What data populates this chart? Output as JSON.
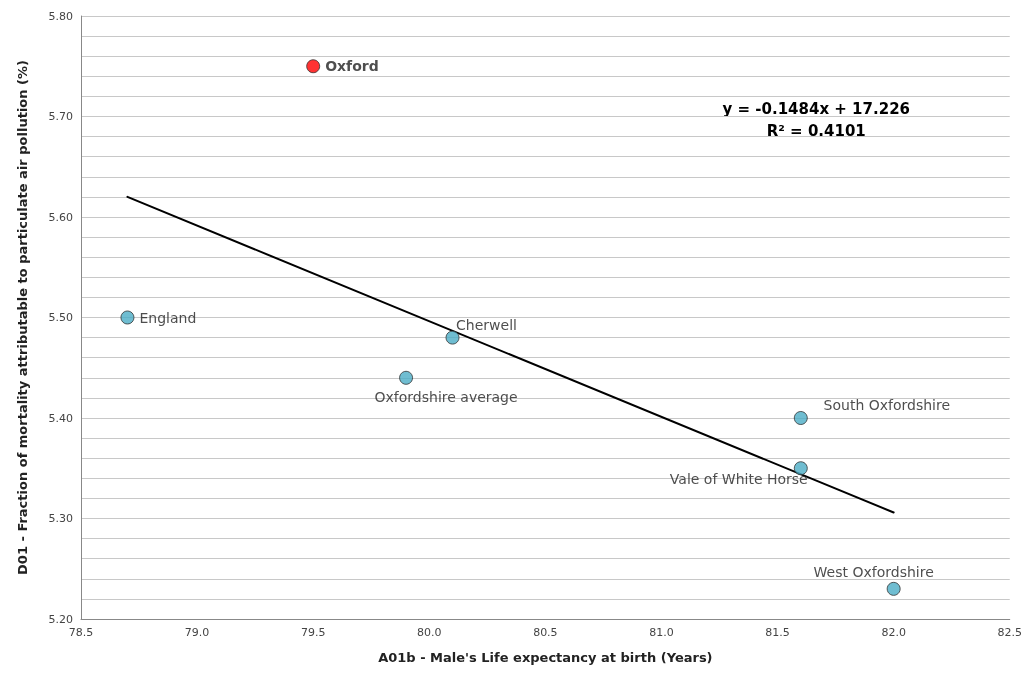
{
  "chart_data": {
    "type": "scatter",
    "xlabel": "A01b - Male's Life expectancy at birth (Years)",
    "ylabel": "D01 - Fraction of mortality attributable to particulate air pollution (%)",
    "xlim": [
      78.5,
      82.5
    ],
    "xticks": [
      {
        "value": 78.5,
        "label": "78.5"
      },
      {
        "value": 79,
        "label": "79.0"
      },
      {
        "value": 79.5,
        "label": "79.5"
      },
      {
        "value": 80,
        "label": "80.0"
      },
      {
        "value": 80.5,
        "label": "80.5"
      },
      {
        "value": 81,
        "label": "81.0"
      },
      {
        "value": 81.5,
        "label": "81.5"
      },
      {
        "value": 82,
        "label": "82.0"
      },
      {
        "value": 82.5,
        "label": "82.5"
      }
    ],
    "ylim": [
      5.2,
      5.8
    ],
    "yticks": [
      {
        "value": 5.2,
        "label": "5.20"
      },
      {
        "value": 5.22,
        "label": null
      },
      {
        "value": 5.24,
        "label": null
      },
      {
        "value": 5.26,
        "label": null
      },
      {
        "value": 5.28,
        "label": null
      },
      {
        "value": 5.3,
        "label": "5.30"
      },
      {
        "value": 5.32,
        "label": null
      },
      {
        "value": 5.34,
        "label": null
      },
      {
        "value": 5.36,
        "label": null
      },
      {
        "value": 5.38,
        "label": null
      },
      {
        "value": 5.4,
        "label": "5.40"
      },
      {
        "value": 5.42,
        "label": null
      },
      {
        "value": 5.44,
        "label": null
      },
      {
        "value": 5.46,
        "label": null
      },
      {
        "value": 5.48,
        "label": null
      },
      {
        "value": 5.5,
        "label": "5.50"
      },
      {
        "value": 5.52,
        "label": null
      },
      {
        "value": 5.54,
        "label": null
      },
      {
        "value": 5.56,
        "label": null
      },
      {
        "value": 5.58,
        "label": null
      },
      {
        "value": 5.6,
        "label": "5.60"
      },
      {
        "value": 5.62,
        "label": null
      },
      {
        "value": 5.64,
        "label": null
      },
      {
        "value": 5.66,
        "label": null
      },
      {
        "value": 5.68,
        "label": null
      },
      {
        "value": 5.7,
        "label": "5.70"
      },
      {
        "value": 5.72,
        "label": null
      },
      {
        "value": 5.74,
        "label": null
      },
      {
        "value": 5.76,
        "label": null
      },
      {
        "value": 5.78,
        "label": null
      },
      {
        "value": 5.8,
        "label": "5.80"
      }
    ],
    "grid": "y",
    "marker": "circle",
    "series": [
      {
        "x": [
          78.7,
          79.5,
          79.9,
          80.1,
          81.6,
          81.6,
          82.0
        ],
        "values": [
          5.5,
          5.75,
          5.44,
          5.48,
          5.4,
          5.35,
          5.23
        ],
        "colors": [
          "#4bacc6",
          "#ff0000",
          "#4bacc6",
          "#4bacc6",
          "#4bacc6",
          "#4bacc6",
          "#4bacc6"
        ]
      },
      {
        "type": "line",
        "x": [
          78.7,
          82.0
        ],
        "values": [
          5.62,
          5.306
        ],
        "color": "#000000",
        "line_style": "solid",
        "marker": "none"
      }
    ],
    "annotations": [
      {
        "text": "England",
        "x": 78.7,
        "y": 5.5
      },
      {
        "text": "Oxford",
        "x": 79.5,
        "y": 5.75
      },
      {
        "text": "Oxfordshire average",
        "x": 79.9,
        "y": 5.44
      },
      {
        "text": "Cherwell",
        "x": 80.1,
        "y": 5.48
      },
      {
        "text": "South Oxfordshire",
        "x": 81.6,
        "y": 5.4
      },
      {
        "text": "Vale of White Horse",
        "x": 81.6,
        "y": 5.35
      },
      {
        "text": "West Oxfordshire",
        "x": 82.0,
        "y": 5.23
      },
      "y = -0.1484x + 17.226\nR² = 0.4101"
    ]
  }
}
